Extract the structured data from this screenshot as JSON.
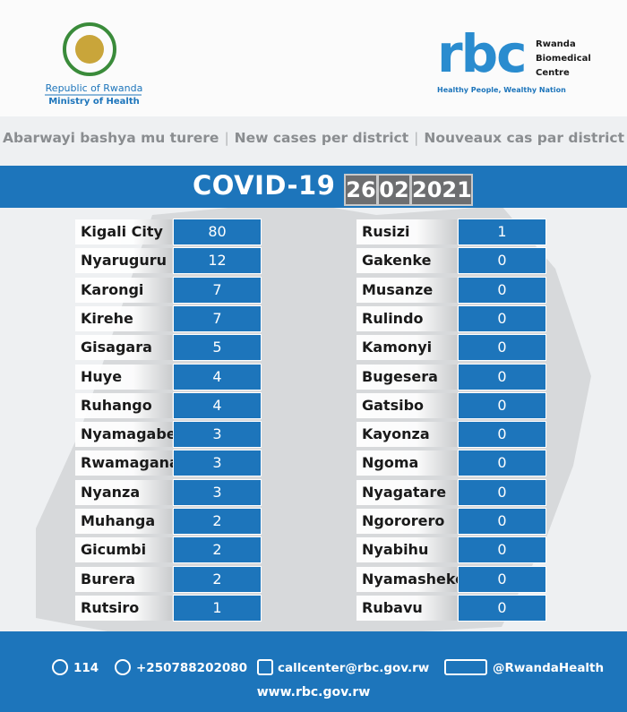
{
  "header": {
    "left_org": {
      "name": "Republic of Rwanda",
      "ministry": "Ministry of Health"
    },
    "right_org": {
      "logo": "rbc",
      "name_lines": [
        "Rwanda",
        "Biomedical",
        "Centre"
      ],
      "tagline": "Healthy People, Wealthy Nation"
    }
  },
  "subtitle": [
    "Abarwayi bashya mu turere",
    "New cases per district",
    "Nouveaux cas par district"
  ],
  "banner": {
    "title": "COVID-19",
    "date": [
      "26",
      "02",
      "2021"
    ]
  },
  "table": {
    "left": [
      [
        "Kigali City",
        80
      ],
      [
        "Nyaruguru",
        12
      ],
      [
        "Karongi",
        7
      ],
      [
        "Kirehe",
        7
      ],
      [
        "Gisagara",
        5
      ],
      [
        "Huye",
        4
      ],
      [
        "Ruhango",
        4
      ],
      [
        "Nyamagabe",
        3
      ],
      [
        "Rwamagana",
        3
      ],
      [
        "Nyanza",
        3
      ],
      [
        "Muhanga",
        2
      ],
      [
        "Gicumbi",
        2
      ],
      [
        "Burera",
        2
      ],
      [
        "Rutsiro",
        1
      ]
    ],
    "right": [
      [
        "Rusizi",
        1
      ],
      [
        "Gakenke",
        0
      ],
      [
        "Musanze",
        0
      ],
      [
        "Rulindo",
        0
      ],
      [
        "Kamonyi",
        0
      ],
      [
        "Bugesera",
        0
      ],
      [
        "Gatsibo",
        0
      ],
      [
        "Kayonza",
        0
      ],
      [
        "Ngoma",
        0
      ],
      [
        "Nyagatare",
        0
      ],
      [
        "Ngororero",
        0
      ],
      [
        "Nyabihu",
        0
      ],
      [
        "Nyamasheke",
        0
      ],
      [
        "Rubavu",
        0
      ]
    ]
  },
  "footer": {
    "phone_short": "114",
    "phone": "+250788202080",
    "email": "callcenter@rbc.gov.rw",
    "social": "@RwandaHealth",
    "website": "www.rbc.gov.rw"
  }
}
